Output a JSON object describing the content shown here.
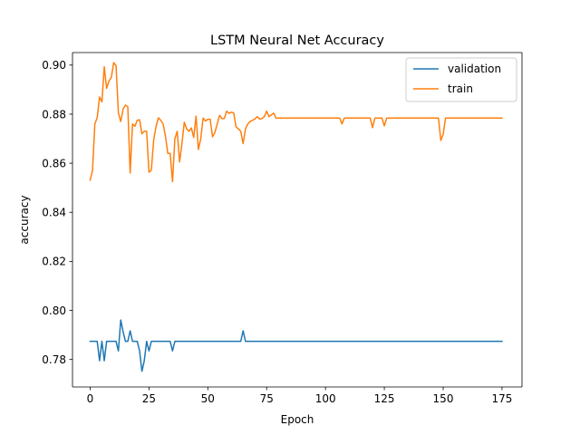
{
  "chart_data": {
    "type": "line",
    "title": "LSTM Neural Net Accuracy",
    "xlabel": "Epoch",
    "ylabel": "accuracy",
    "xlim": [
      -7.5,
      183.5
    ],
    "ylim": [
      0.7688,
      0.9051
    ],
    "xticks": [
      0,
      25,
      50,
      75,
      100,
      125,
      150,
      175
    ],
    "yticks": [
      0.78,
      0.8,
      0.82,
      0.84,
      0.86,
      0.88,
      0.9
    ],
    "ytick_labels": [
      "0.78",
      "0.80",
      "0.82",
      "0.84",
      "0.86",
      "0.88",
      "0.90"
    ],
    "grid": false,
    "legend_position": "upper right",
    "series": [
      {
        "name": "validation",
        "color": "#1f77b4",
        "x": [
          0,
          1,
          2,
          3,
          4,
          5,
          6,
          7,
          8,
          9,
          10,
          11,
          12,
          13,
          14,
          15,
          16,
          17,
          18,
          19,
          20,
          21,
          22,
          23,
          24,
          25,
          26,
          27,
          28,
          29,
          30,
          31,
          32,
          33,
          34,
          35,
          36,
          37,
          38,
          39,
          40,
          60,
          64,
          65,
          66,
          67,
          68,
          70,
          80,
          100,
          120,
          140,
          150,
          160,
          170,
          175
        ],
        "values": [
          0.7874,
          0.7874,
          0.7874,
          0.7874,
          0.7795,
          0.7874,
          0.7795,
          0.7874,
          0.7874,
          0.7874,
          0.7874,
          0.7874,
          0.7835,
          0.7961,
          0.7913,
          0.7874,
          0.7874,
          0.7917,
          0.7874,
          0.7874,
          0.7874,
          0.7835,
          0.7752,
          0.7795,
          0.7874,
          0.7835,
          0.7874,
          0.7874,
          0.7874,
          0.7874,
          0.7874,
          0.7874,
          0.7874,
          0.7874,
          0.7874,
          0.7835,
          0.7874,
          0.7874,
          0.7874,
          0.7874,
          0.7874,
          0.7874,
          0.7874,
          0.7917,
          0.7874,
          0.7874,
          0.7874,
          0.7874,
          0.7874,
          0.7874,
          0.7874,
          0.7874,
          0.7874,
          0.7874,
          0.7874,
          0.7874
        ]
      },
      {
        "name": "train",
        "color": "#ff7f0e",
        "x": [
          0,
          1,
          2,
          3,
          4,
          5,
          6,
          7,
          8,
          9,
          10,
          11,
          12,
          13,
          14,
          15,
          16,
          17,
          18,
          19,
          20,
          21,
          22,
          23,
          24,
          25,
          26,
          27,
          28,
          29,
          30,
          31,
          32,
          33,
          34,
          35,
          36,
          37,
          38,
          39,
          40,
          41,
          42,
          43,
          44,
          45,
          46,
          47,
          48,
          49,
          50,
          51,
          52,
          53,
          54,
          55,
          56,
          57,
          58,
          59,
          60,
          61,
          62,
          63,
          64,
          65,
          66,
          67,
          68,
          69,
          70,
          71,
          72,
          73,
          74,
          75,
          76,
          77,
          78,
          79,
          80,
          90,
          100,
          106,
          107,
          108,
          110,
          119,
          120,
          121,
          122,
          123,
          124,
          125,
          126,
          127,
          128,
          140,
          148,
          149,
          150,
          151,
          152,
          153,
          160,
          175
        ],
        "values": [
          0.8531,
          0.857,
          0.876,
          0.8786,
          0.887,
          0.885,
          0.8993,
          0.8905,
          0.8935,
          0.895,
          0.901,
          0.8998,
          0.8805,
          0.877,
          0.882,
          0.8837,
          0.883,
          0.856,
          0.876,
          0.875,
          0.8775,
          0.8777,
          0.872,
          0.873,
          0.873,
          0.8563,
          0.8572,
          0.8695,
          0.875,
          0.8785,
          0.8775,
          0.876,
          0.871,
          0.864,
          0.864,
          0.8525,
          0.87,
          0.873,
          0.8605,
          0.868,
          0.8767,
          0.874,
          0.873,
          0.8744,
          0.8705,
          0.8792,
          0.8656,
          0.87,
          0.8784,
          0.8772,
          0.8779,
          0.8779,
          0.8708,
          0.8725,
          0.876,
          0.8795,
          0.8782,
          0.8782,
          0.8812,
          0.8803,
          0.8808,
          0.8805,
          0.8748,
          0.874,
          0.873,
          0.868,
          0.874,
          0.876,
          0.877,
          0.8775,
          0.878,
          0.879,
          0.878,
          0.8782,
          0.879,
          0.8812,
          0.879,
          0.8797,
          0.8804,
          0.8784,
          0.8784,
          0.8784,
          0.8784,
          0.8784,
          0.876,
          0.8784,
          0.8784,
          0.8784,
          0.8745,
          0.8784,
          0.8784,
          0.8784,
          0.8784,
          0.8752,
          0.8784,
          0.8784,
          0.8784,
          0.8784,
          0.8784,
          0.8693,
          0.8718,
          0.8784,
          0.8784,
          0.8784,
          0.8784,
          0.8784
        ]
      }
    ]
  }
}
